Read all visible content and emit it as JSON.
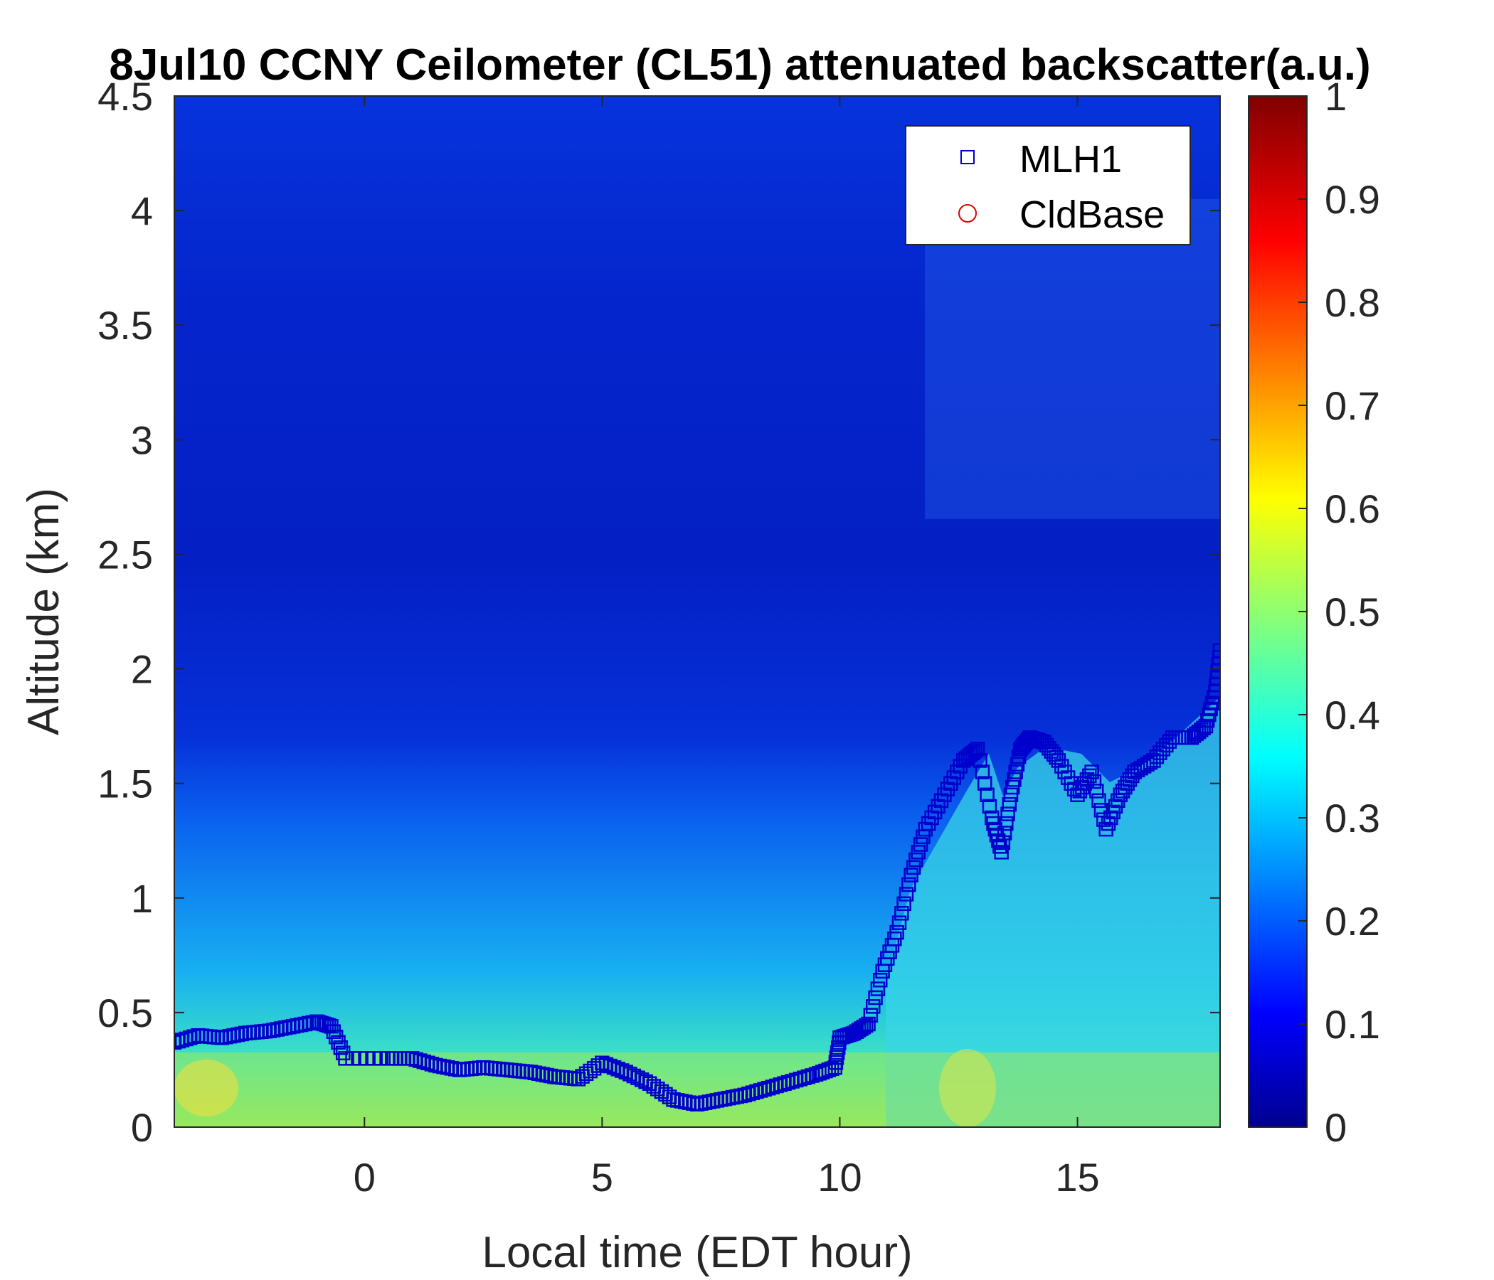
{
  "chart_data": {
    "type": "heatmap",
    "title": "8Jul10 CCNY Ceilometer (CL51) attenuated backscatter(a.u.)",
    "xlabel": "Local time (EDT hour)",
    "ylabel": "Altitude (km)",
    "xlim": [
      -4,
      18
    ],
    "ylim": [
      0,
      4.5
    ],
    "xticks": [
      "0",
      "5",
      "10",
      "15"
    ],
    "yticks": [
      "0",
      "0.5",
      "1",
      "1.5",
      "2",
      "2.5",
      "3",
      "3.5",
      "4",
      "4.5"
    ],
    "colorbar": {
      "range": [
        0,
        1
      ],
      "ticks": [
        "0",
        "0.1",
        "0.2",
        "0.3",
        "0.4",
        "0.5",
        "0.6",
        "0.7",
        "0.8",
        "0.9",
        "1"
      ],
      "colormap": "jet"
    },
    "legend": {
      "position": "top-right",
      "entries": [
        {
          "label": "MLH1",
          "marker": "square",
          "color": "#0000cc"
        },
        {
          "label": "CldBase",
          "marker": "circle",
          "color": "#dd0000"
        }
      ]
    },
    "series": [
      {
        "name": "MLH1",
        "marker": "square",
        "color": "#0000cc",
        "x": [
          -4,
          -3.5,
          -3,
          -2.5,
          -2,
          -1.5,
          -1,
          -0.7,
          -0.4,
          0.5,
          1,
          1.5,
          2,
          2.5,
          3,
          3.5,
          4,
          4.5,
          5,
          5.5,
          6,
          6.5,
          7,
          7.5,
          8,
          8.5,
          9,
          9.5,
          9.9,
          10,
          10.3,
          10.6,
          10.9,
          11.2,
          11.5,
          11.8,
          12.2,
          12.6,
          12.9,
          13.2,
          13.4,
          13.6,
          13.8,
          14,
          14.3,
          14.6,
          15,
          15.3,
          15.6,
          15.9,
          16.2,
          16.6,
          17,
          17.4,
          17.7,
          17.9,
          18
        ],
        "y": [
          0.37,
          0.4,
          0.39,
          0.41,
          0.42,
          0.44,
          0.46,
          0.44,
          0.3,
          0.3,
          0.3,
          0.27,
          0.25,
          0.26,
          0.25,
          0.24,
          0.22,
          0.21,
          0.28,
          0.24,
          0.19,
          0.12,
          0.1,
          0.12,
          0.14,
          0.17,
          0.2,
          0.23,
          0.26,
          0.39,
          0.41,
          0.45,
          0.68,
          0.85,
          1.1,
          1.3,
          1.45,
          1.6,
          1.65,
          1.35,
          1.2,
          1.45,
          1.65,
          1.7,
          1.68,
          1.6,
          1.45,
          1.55,
          1.3,
          1.45,
          1.55,
          1.6,
          1.7,
          1.7,
          1.75,
          1.9,
          2.08
        ]
      },
      {
        "name": "CldBase",
        "marker": "circle",
        "color": "#dd0000",
        "x": [],
        "y": []
      }
    ]
  }
}
